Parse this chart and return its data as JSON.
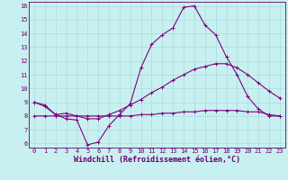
{
  "xlabel": "Windchill (Refroidissement éolien,°C)",
  "bg_color": "#c8f0f0",
  "line_color": "#800080",
  "grid_color": "#a8dede",
  "ylim": [
    6,
    16
  ],
  "xlim": [
    0,
    23
  ],
  "yticks": [
    6,
    7,
    8,
    9,
    10,
    11,
    12,
    13,
    14,
    15,
    16
  ],
  "xticks": [
    0,
    1,
    2,
    3,
    4,
    5,
    6,
    7,
    8,
    9,
    10,
    11,
    12,
    13,
    14,
    15,
    16,
    17,
    18,
    19,
    20,
    21,
    22,
    23
  ],
  "series1_y": [
    9.0,
    8.7,
    8.1,
    7.8,
    7.7,
    5.9,
    6.1,
    7.3,
    8.1,
    8.9,
    11.5,
    13.2,
    13.9,
    14.4,
    15.9,
    16.0,
    14.6,
    13.9,
    12.3,
    11.0,
    9.4,
    8.5,
    8.0,
    8.0
  ],
  "series2_y": [
    9.0,
    8.8,
    8.1,
    8.2,
    8.0,
    7.8,
    7.8,
    8.1,
    8.4,
    8.8,
    9.2,
    9.7,
    10.1,
    10.6,
    11.0,
    11.4,
    11.6,
    11.8,
    11.8,
    11.5,
    11.0,
    10.4,
    9.8,
    9.3
  ],
  "series3_y": [
    8.0,
    8.0,
    8.0,
    8.0,
    8.0,
    8.0,
    8.0,
    8.0,
    8.0,
    8.0,
    8.1,
    8.1,
    8.2,
    8.2,
    8.3,
    8.3,
    8.4,
    8.4,
    8.4,
    8.4,
    8.3,
    8.3,
    8.1,
    8.0
  ],
  "marker": "+",
  "markersize": 3,
  "linewidth": 0.8,
  "tick_fontsize": 5,
  "label_fontsize": 6,
  "tick_color": "#6a006a",
  "spine_color": "#6a006a"
}
